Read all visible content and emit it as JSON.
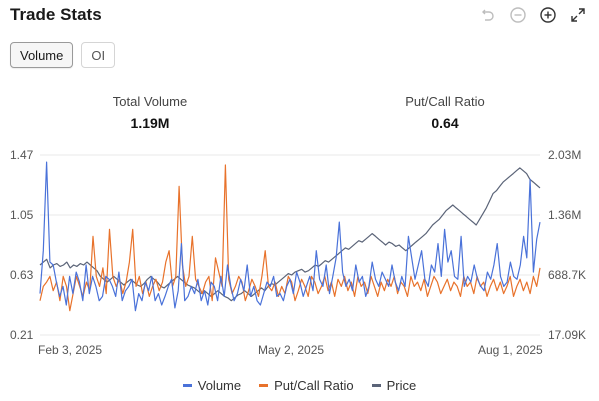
{
  "header": {
    "title": "Trade Stats"
  },
  "toolbar": {
    "icons": [
      "undo-icon",
      "zoom-out-icon",
      "zoom-in-icon",
      "expand-icon"
    ]
  },
  "tabs": [
    {
      "label": "Volume",
      "active": true
    },
    {
      "label": "OI",
      "active": false
    }
  ],
  "stats": [
    {
      "label": "Total Volume",
      "value": "1.19M"
    },
    {
      "label": "Put/Call Ratio",
      "value": "0.64"
    }
  ],
  "colors": {
    "volume": "#4a72d9",
    "putcall": "#e8722b",
    "price": "#5b6478",
    "grid": "#e8e8e8"
  },
  "chart_data": {
    "type": "line",
    "left_axis": {
      "ticks": [
        "1.47",
        "1.05",
        "0.63",
        "0.21"
      ],
      "range": [
        0.21,
        1.47
      ]
    },
    "right_axis": {
      "ticks": [
        "2.03M",
        "1.36M",
        "688.7K",
        "17.09K"
      ]
    },
    "x_ticks": [
      "Feb 3, 2025",
      "May 2, 2025",
      "Aug 1, 2025"
    ],
    "grid": true,
    "legend": "bottom",
    "series": [
      {
        "name": "Volume",
        "axis": "right",
        "values": [
          0.5,
          0.8,
          1.42,
          0.72,
          0.7,
          0.58,
          0.48,
          0.55,
          0.42,
          0.62,
          0.5,
          0.65,
          0.58,
          0.45,
          0.7,
          0.5,
          0.62,
          0.55,
          0.45,
          0.48,
          0.62,
          0.6,
          0.55,
          0.48,
          0.65,
          0.45,
          0.52,
          0.55,
          0.6,
          0.38,
          0.5,
          0.45,
          0.58,
          0.52,
          0.62,
          0.45,
          0.5,
          0.42,
          0.48,
          0.55,
          0.6,
          0.4,
          0.52,
          0.85,
          0.45,
          0.48,
          0.55,
          0.5,
          0.6,
          0.45,
          0.52,
          0.42,
          0.58,
          0.55,
          0.45,
          0.62,
          0.48,
          0.7,
          0.55,
          0.45,
          0.5,
          0.6,
          0.52,
          0.7,
          0.48,
          0.55,
          0.45,
          0.42,
          0.5,
          0.58,
          0.55,
          0.62,
          0.48,
          0.5,
          0.45,
          0.55,
          0.6,
          0.5,
          0.65,
          0.58,
          0.48,
          0.55,
          0.62,
          0.52,
          0.8,
          0.6,
          0.55,
          0.7,
          0.5,
          0.62,
          0.75,
          1.0,
          0.65,
          0.55,
          0.6,
          0.52,
          0.7,
          0.58,
          0.62,
          0.48,
          0.55,
          0.72,
          0.6,
          0.55,
          0.65,
          0.6,
          0.55,
          0.7,
          0.58,
          0.52,
          0.62,
          0.55,
          0.9,
          0.75,
          0.6,
          0.7,
          0.8,
          0.6,
          0.55,
          0.7,
          0.65,
          0.85,
          0.62,
          0.95,
          0.72,
          0.8,
          0.62,
          0.6,
          0.9,
          0.55,
          0.62,
          0.58,
          0.7,
          0.6,
          0.55,
          0.52,
          0.65,
          0.6,
          0.7,
          0.85,
          0.62,
          0.55,
          0.58,
          0.72,
          0.62,
          0.6,
          0.7,
          0.9,
          0.75,
          1.3,
          0.65,
          0.88,
          1.0
        ]
      },
      {
        "name": "Put/Call Ratio",
        "axis": "left",
        "values": [
          0.45,
          0.55,
          0.58,
          0.62,
          0.52,
          0.58,
          0.45,
          0.62,
          0.55,
          0.38,
          0.5,
          0.62,
          0.55,
          0.48,
          0.58,
          0.52,
          0.9,
          0.62,
          0.55,
          0.68,
          0.5,
          0.95,
          0.62,
          0.55,
          0.6,
          0.5,
          0.58,
          0.72,
          0.95,
          0.55,
          0.62,
          0.5,
          0.58,
          0.48,
          0.55,
          0.6,
          0.52,
          0.58,
          0.72,
          0.8,
          0.55,
          0.62,
          1.25,
          0.7,
          0.55,
          0.62,
          0.9,
          0.6,
          0.55,
          0.5,
          0.58,
          0.62,
          0.45,
          0.75,
          0.65,
          0.55,
          1.4,
          0.6,
          0.5,
          0.55,
          0.62,
          0.58,
          0.45,
          0.52,
          0.6,
          0.55,
          0.48,
          0.62,
          0.8,
          0.55,
          0.52,
          0.58,
          0.48,
          0.55,
          0.5,
          0.62,
          0.58,
          0.45,
          0.52,
          0.6,
          0.55,
          0.48,
          0.62,
          0.58,
          0.5,
          0.55,
          0.62,
          0.52,
          0.58,
          0.48,
          0.6,
          0.55,
          0.62,
          0.52,
          0.58,
          0.48,
          0.62,
          0.55,
          0.58,
          0.5,
          0.62,
          0.55,
          0.48,
          0.58,
          0.52,
          0.6,
          0.55,
          0.62,
          0.5,
          0.58,
          0.55,
          0.48,
          0.62,
          0.55,
          0.58,
          0.52,
          0.6,
          0.48,
          0.55,
          0.62,
          0.58,
          0.5,
          0.55,
          0.6,
          0.52,
          0.58,
          0.55,
          0.48,
          0.62,
          0.55,
          0.58,
          0.5,
          0.62,
          0.55,
          0.58,
          0.48,
          0.55,
          0.6,
          0.52,
          0.58,
          0.5,
          0.55,
          0.62,
          0.48,
          0.55,
          0.6,
          0.52,
          0.58,
          0.5,
          0.62,
          0.55,
          0.68
        ]
      },
      {
        "name": "Price",
        "axis": "right",
        "values": [
          0.7,
          0.72,
          0.74,
          0.68,
          0.7,
          0.71,
          0.69,
          0.7,
          0.72,
          0.68,
          0.7,
          0.69,
          0.71,
          0.7,
          0.72,
          0.7,
          0.68,
          0.66,
          0.62,
          0.6,
          0.58,
          0.6,
          0.62,
          0.6,
          0.58,
          0.56,
          0.58,
          0.6,
          0.58,
          0.56,
          0.55,
          0.57,
          0.6,
          0.62,
          0.6,
          0.58,
          0.55,
          0.54,
          0.56,
          0.58,
          0.6,
          0.62,
          0.6,
          0.58,
          0.56,
          0.55,
          0.54,
          0.52,
          0.5,
          0.52,
          0.5,
          0.48,
          0.5,
          0.52,
          0.5,
          0.48,
          0.47,
          0.45,
          0.47,
          0.49,
          0.5,
          0.52,
          0.5,
          0.48,
          0.5,
          0.52,
          0.54,
          0.52,
          0.55,
          0.57,
          0.56,
          0.58,
          0.6,
          0.62,
          0.64,
          0.63,
          0.65,
          0.66,
          0.67,
          0.65,
          0.66,
          0.68,
          0.7,
          0.69,
          0.71,
          0.73,
          0.72,
          0.74,
          0.76,
          0.78,
          0.8,
          0.82,
          0.81,
          0.83,
          0.85,
          0.87,
          0.86,
          0.88,
          0.9,
          0.92,
          0.9,
          0.88,
          0.86,
          0.84,
          0.86,
          0.85,
          0.83,
          0.84,
          0.82,
          0.8,
          0.82,
          0.84,
          0.86,
          0.88,
          0.9,
          0.92,
          0.95,
          0.98,
          1.0,
          1.02,
          1.05,
          1.08,
          1.1,
          1.12,
          1.1,
          1.08,
          1.06,
          1.04,
          1.02,
          1.0,
          0.98,
          1.02,
          1.06,
          1.1,
          1.15,
          1.2,
          1.22,
          1.25,
          1.28,
          1.3,
          1.32,
          1.34,
          1.36,
          1.38,
          1.36,
          1.34,
          1.3,
          1.28,
          1.26,
          1.24
        ]
      }
    ]
  }
}
